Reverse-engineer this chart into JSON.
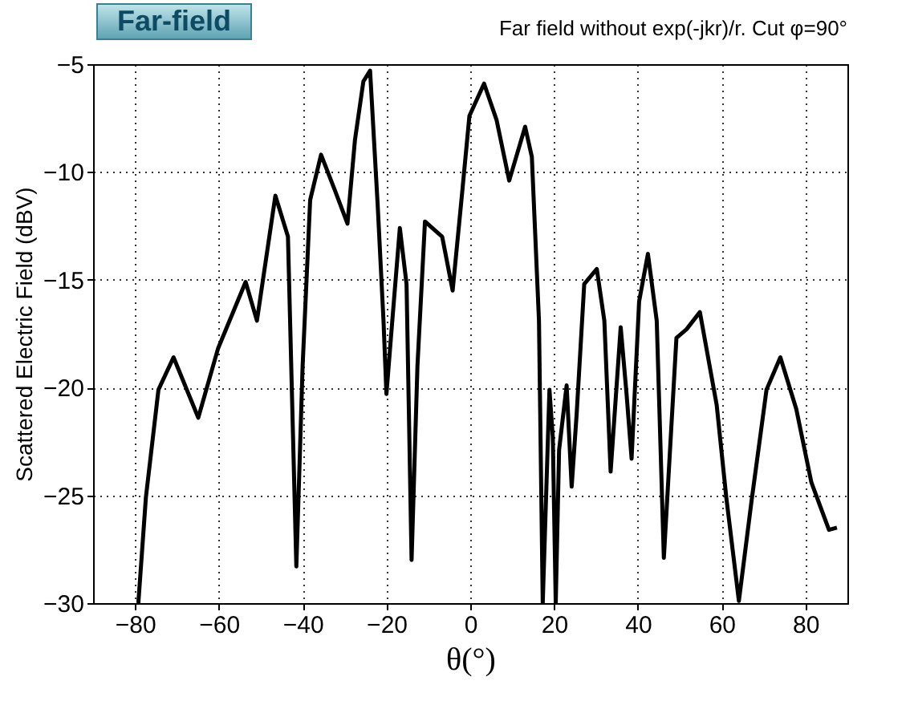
{
  "chart_data": {
    "type": "line",
    "title": "Far field without exp(-jkr)/r.  Cut φ=90°",
    "xlabel": "θ(°)",
    "ylabel": "Scattered Electric Field (dBV)",
    "annotations": [
      "Far-field"
    ],
    "x": [
      -79.2,
      -77.4,
      -74.4,
      -70.8,
      -64.9,
      -60.2,
      -53.6,
      -50.9,
      -46.5,
      -43.5,
      -41.5,
      -40,
      -38.2,
      -35.6,
      -32.2,
      -29.3,
      -27.5,
      -25.5,
      -23.9,
      -22.1,
      -20.7,
      -20.0,
      -18.6,
      -16.8,
      -15.2,
      -14.0,
      -12.6,
      -10.8,
      -8.5,
      -6.7,
      -4.2,
      -2.0,
      -0.2,
      3.3,
      6.3,
      9.3,
      13.1,
      14.7,
      16.4,
      17.3,
      18.9,
      19.7,
      20.4,
      21.2,
      23.0,
      24.2,
      25.4,
      27.2,
      30.2,
      32.0,
      33.5,
      35.9,
      37.3,
      38.5,
      40.3,
      42.4,
      44.5,
      46.2,
      49.2,
      51.6,
      54.8,
      58.8,
      61.1,
      64.1,
      67.1,
      70.7,
      74.0,
      77.8,
      81.4,
      85.6,
      87.5
    ],
    "series": [
      {
        "color": "#000000",
        "values": [
          -30,
          -25.1,
          -20.1,
          -18.6,
          -21.4,
          -18.2,
          -15.1,
          -16.9,
          -11.1,
          -13.0,
          -28.3,
          -19.0,
          -11.3,
          -9.2,
          -10.9,
          -12.4,
          -8.5,
          -5.8,
          -5.3,
          -11.5,
          -16.9,
          -20.3,
          -16.9,
          -12.6,
          -15.2,
          -28.0,
          -19.0,
          -12.3,
          -12.7,
          -13.0,
          -15.5,
          -11.1,
          -7.4,
          -5.9,
          -7.6,
          -10.4,
          -7.9,
          -9.3,
          -16.9,
          -30,
          -20.1,
          -22.3,
          -30,
          -22.9,
          -19.9,
          -24.6,
          -21.2,
          -15.2,
          -14.5,
          -16.9,
          -23.9,
          -17.2,
          -20.3,
          -23.3,
          -16.0,
          -13.8,
          -16.9,
          -27.9,
          -17.7,
          -17.3,
          -16.5,
          -20.8,
          -25.1,
          -29.9,
          -25.3,
          -20.1,
          -18.6,
          -21.0,
          -24.4,
          -26.6,
          -26.5
        ]
      }
    ],
    "xlim": [
      -90,
      90
    ],
    "ylim": [
      -30,
      -5
    ],
    "xticks": [
      -80,
      -60,
      -40,
      -20,
      0,
      20,
      40,
      60,
      80
    ],
    "yticks": [
      -30,
      -25,
      -20,
      -15,
      -10,
      -5
    ],
    "grid": true
  }
}
